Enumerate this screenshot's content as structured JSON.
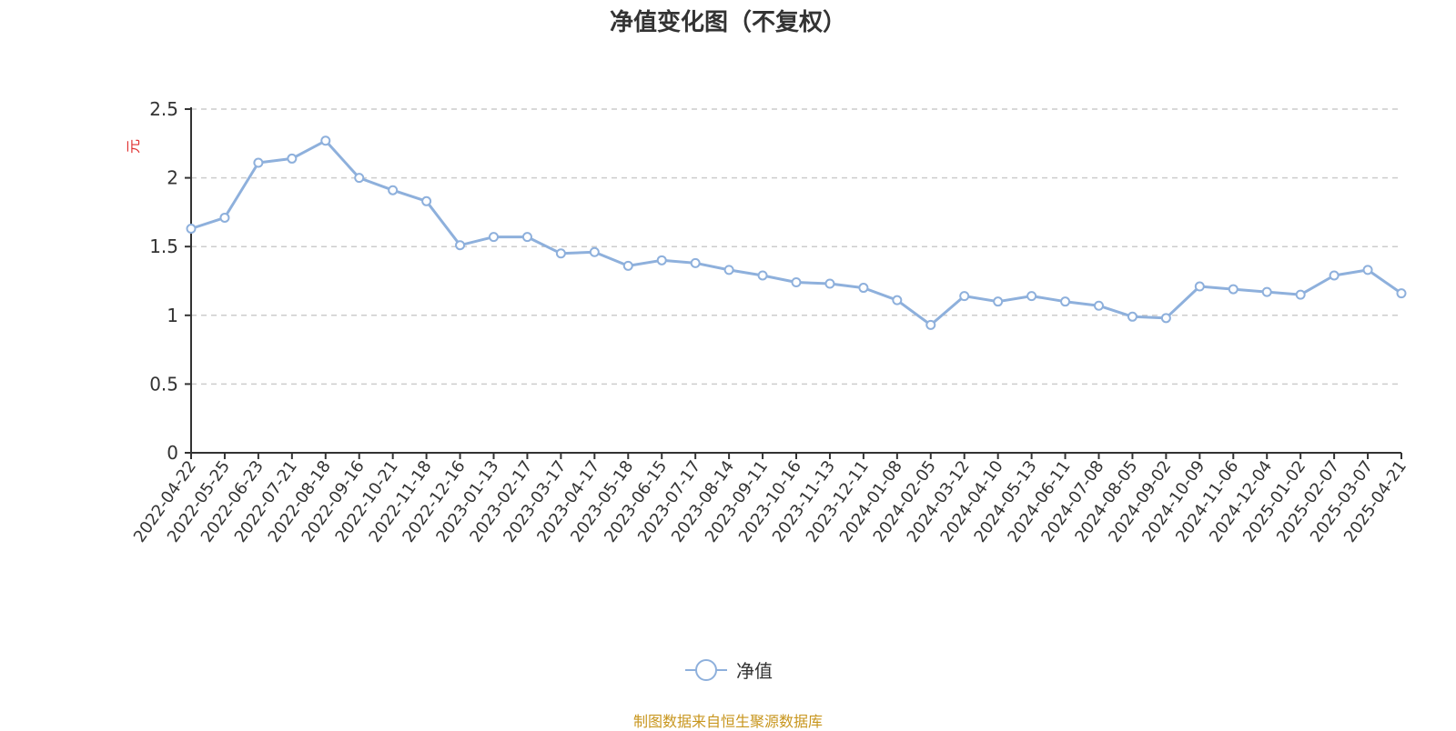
{
  "chart_data": {
    "type": "line",
    "title": "净值变化图（不复权）",
    "ylabel": "元",
    "ylim": [
      0,
      2.5
    ],
    "yticks": [
      "0",
      "0.5",
      "1",
      "1.5",
      "2",
      "2.5"
    ],
    "grid": true,
    "legend_position": "bottom-center",
    "categories": [
      "2022-04-22",
      "2022-05-25",
      "2022-06-23",
      "2022-07-21",
      "2022-08-18",
      "2022-09-16",
      "2022-10-21",
      "2022-11-18",
      "2022-12-16",
      "2023-01-13",
      "2023-02-17",
      "2023-03-17",
      "2023-04-17",
      "2023-05-18",
      "2023-06-15",
      "2023-07-17",
      "2023-08-14",
      "2023-09-11",
      "2023-10-16",
      "2023-11-13",
      "2023-12-11",
      "2024-01-08",
      "2024-02-05",
      "2024-03-12",
      "2024-04-10",
      "2024-05-13",
      "2024-06-11",
      "2024-07-08",
      "2024-08-05",
      "2024-09-02",
      "2024-10-09",
      "2024-11-06",
      "2024-12-04",
      "2025-01-02",
      "2025-02-07",
      "2025-03-07",
      "2025-04-21"
    ],
    "series": [
      {
        "name": "净值",
        "color": "#8eb0dc",
        "values": [
          1.63,
          1.71,
          2.11,
          2.14,
          2.27,
          2.0,
          1.91,
          1.83,
          1.51,
          1.57,
          1.57,
          1.45,
          1.46,
          1.36,
          1.4,
          1.38,
          1.33,
          1.29,
          1.24,
          1.23,
          1.2,
          1.11,
          0.93,
          1.14,
          1.1,
          1.14,
          1.1,
          1.07,
          0.99,
          0.98,
          1.21,
          1.19,
          1.17,
          1.15,
          1.29,
          1.33,
          1.16
        ]
      }
    ]
  },
  "legend": {
    "label": "净值"
  },
  "source_text": "制图数据来自恒生聚源数据库"
}
